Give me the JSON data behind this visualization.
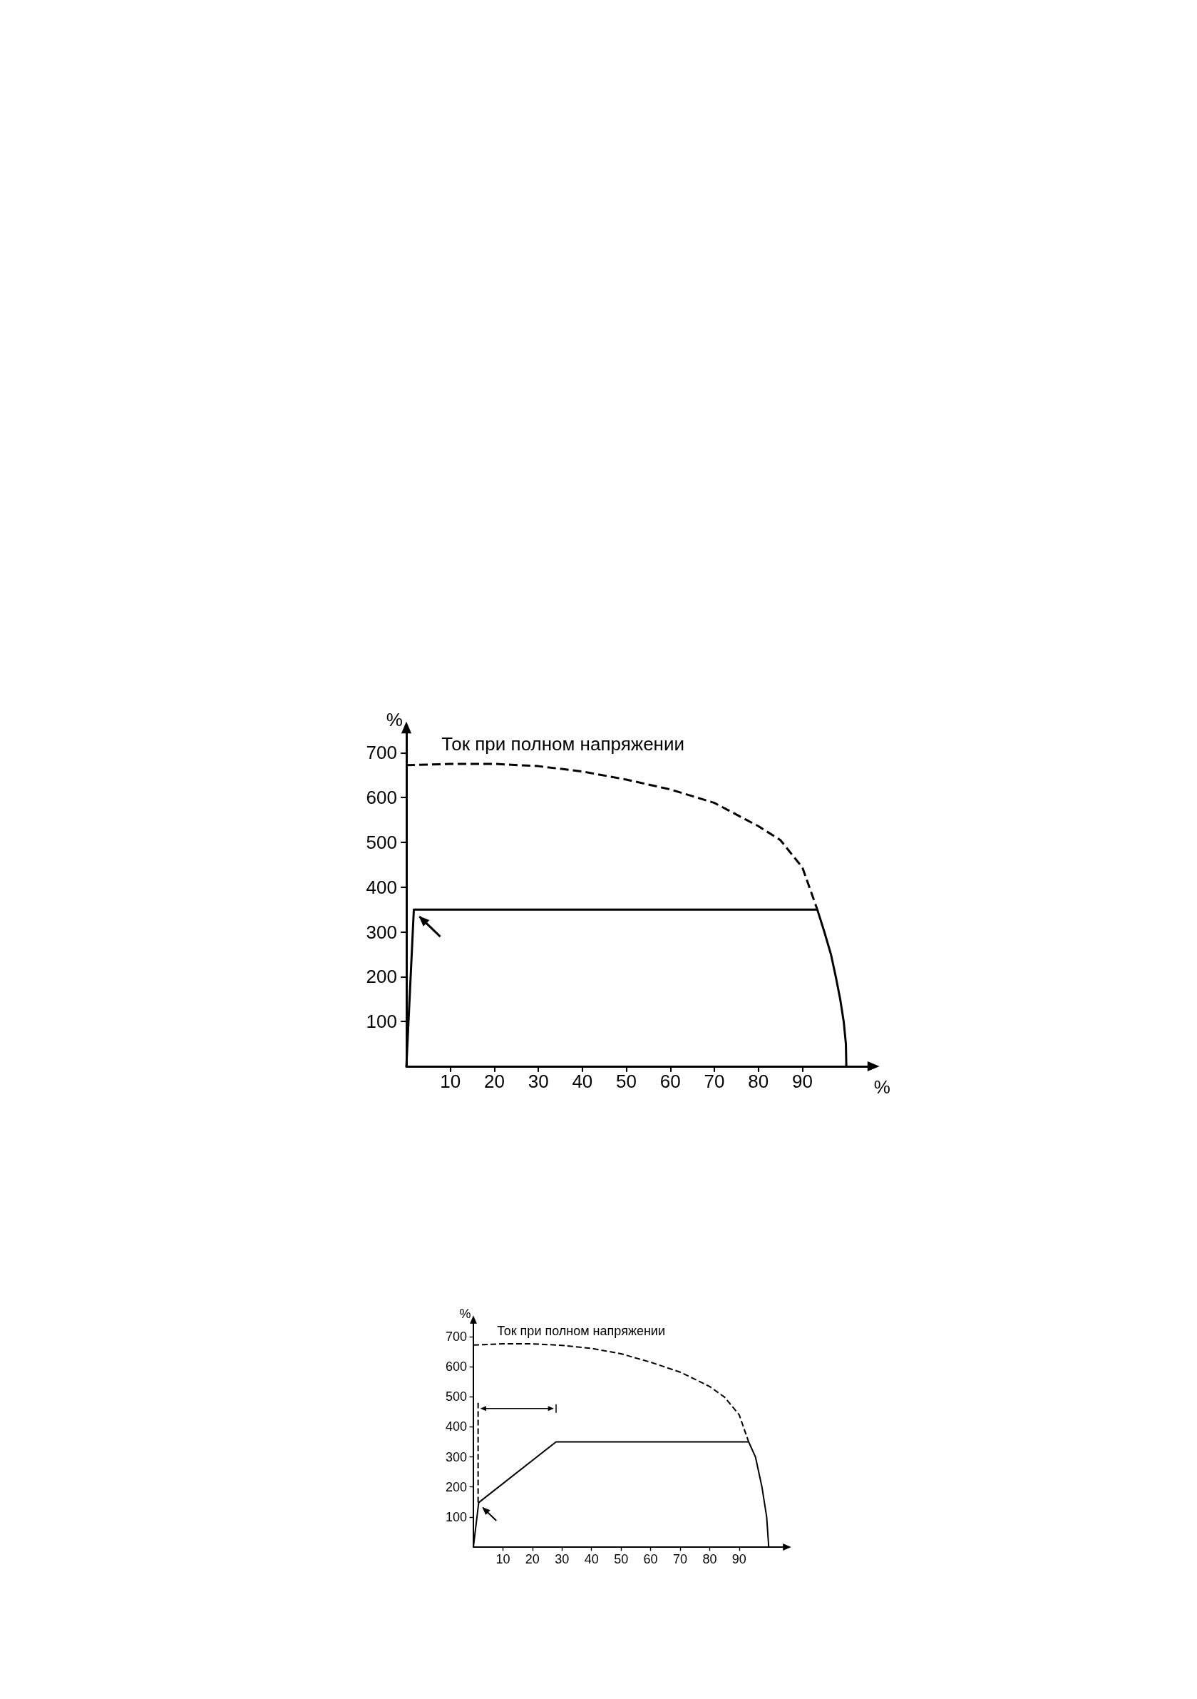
{
  "chart_data": [
    {
      "type": "line",
      "annotations": [
        "Ток при полном напряжении"
      ],
      "xlabel": "%",
      "ylabel": "%",
      "xlim": [
        0,
        105
      ],
      "ylim": [
        0,
        745
      ],
      "xticks": [
        10,
        20,
        30,
        40,
        50,
        60,
        70,
        80,
        90
      ],
      "yticks": [
        100,
        200,
        300,
        400,
        500,
        600,
        700
      ],
      "grid": false,
      "marker": "none",
      "series": [
        {
          "color": "#000000",
          "line_style": "solid",
          "x": [
            0,
            1.7,
            93.4,
            95,
            96.5,
            97.6,
            98.6,
            99.4,
            99.9,
            100
          ],
          "values": [
            0,
            350,
            350,
            300,
            250,
            200,
            150,
            100,
            50,
            0
          ]
        },
        {
          "color": "#000000",
          "line_style": "dashed",
          "x": [
            0,
            10,
            20,
            30,
            40,
            50,
            60,
            70,
            80,
            85,
            90,
            93.4
          ],
          "values": [
            672,
            675,
            675,
            670,
            658,
            640,
            618,
            588,
            536,
            505,
            444,
            350
          ]
        }
      ]
    },
    {
      "type": "line",
      "annotations": [
        "Ток при полном напряжении"
      ],
      "ylabel": "%",
      "xlim": [
        0,
        105
      ],
      "ylim": [
        0,
        745
      ],
      "xticks": [
        10,
        20,
        30,
        40,
        50,
        60,
        70,
        80,
        90
      ],
      "yticks": [
        100,
        200,
        300,
        400,
        500,
        600,
        700
      ],
      "grid": false,
      "marker": "none",
      "series": [
        {
          "color": "#000000",
          "line_style": "solid",
          "x": [
            0,
            1.8,
            28,
            93.2,
            95.5,
            97.7,
            99.3,
            100
          ],
          "values": [
            0,
            148,
            350,
            350,
            300,
            200,
            100,
            0
          ]
        },
        {
          "color": "#000000",
          "line_style": "dashed",
          "x": [
            0,
            10,
            20,
            30,
            40,
            50,
            60,
            70,
            80,
            85,
            90,
            93.2
          ],
          "values": [
            672,
            676,
            676,
            671,
            661,
            643,
            615,
            582,
            534,
            499,
            440,
            350
          ]
        },
        {
          "color": "#000000",
          "line_style": "dashed",
          "x": [
            1.6,
            1.6
          ],
          "values": [
            148,
            480
          ]
        }
      ]
    }
  ]
}
